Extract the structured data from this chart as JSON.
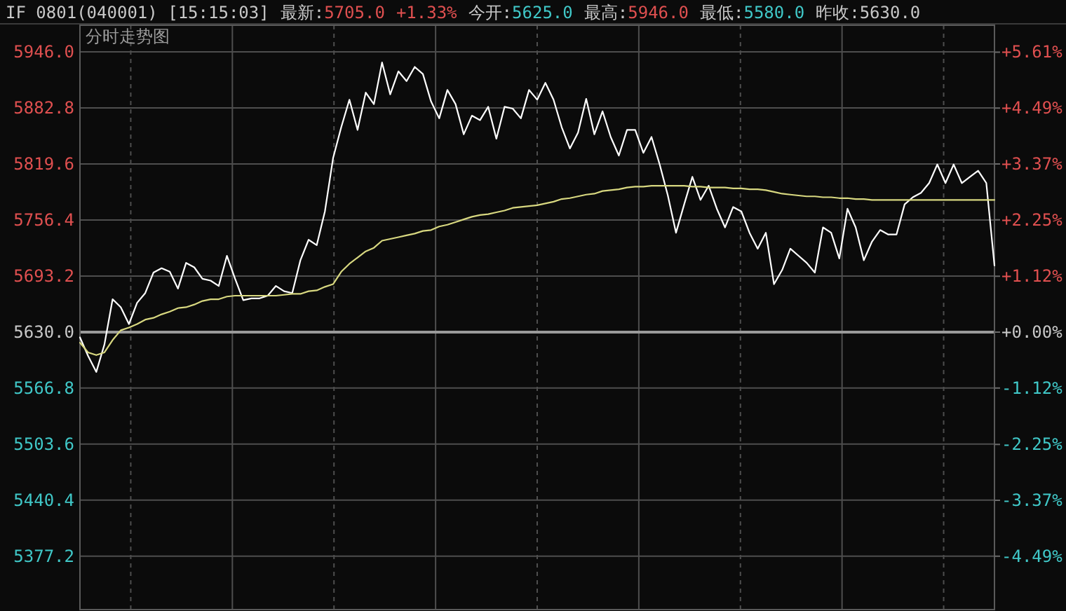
{
  "chart_data": {
    "type": "line",
    "title": "IF  0801(040001) [15:15:03]",
    "subtitle": "分时走势图",
    "annotations": [
      "最新:5705.0",
      "+1.33%",
      "今开:5625.0",
      "最高:5946.0",
      "最低:5580.0",
      "昨收:5630.0"
    ],
    "categories": [
      null,
      null,
      null,
      null,
      null,
      null,
      null,
      null,
      null,
      null,
      null,
      null,
      null,
      null,
      null,
      null,
      null,
      null,
      null,
      null,
      null,
      null,
      null,
      null,
      null,
      null,
      null,
      null,
      null,
      null,
      null,
      null,
      null,
      null,
      null,
      null,
      null,
      null,
      null,
      null,
      null,
      null,
      null,
      null,
      null,
      null,
      null,
      null,
      null,
      null,
      null,
      null,
      null,
      null,
      null,
      null,
      null,
      null,
      null,
      null,
      null,
      null,
      null,
      null,
      null,
      null,
      null,
      null,
      null,
      null,
      null,
      null,
      null,
      null,
      null,
      null,
      null,
      null,
      null,
      null,
      null,
      null,
      null,
      null,
      null,
      null,
      null,
      null,
      null,
      null,
      null,
      null,
      null,
      null,
      null,
      null,
      null,
      null,
      null,
      null,
      null,
      null,
      null,
      null,
      null,
      null,
      null,
      null,
      null,
      null,
      null,
      null,
      null
    ],
    "series": [
      {
        "color": "#ffffff",
        "values": [
          5624,
          5603,
          5585,
          5616,
          5667,
          5658,
          5639,
          5663,
          5674,
          5697,
          5702,
          5698,
          5679,
          5708,
          5703,
          5690,
          5688,
          5682,
          5716,
          5690,
          5666,
          5668,
          5668,
          5671,
          5682,
          5676,
          5674,
          5711,
          5734,
          5728,
          5766,
          5826,
          5861,
          5892,
          5858,
          5900,
          5887,
          5934,
          5898,
          5924,
          5913,
          5929,
          5921,
          5890,
          5871,
          5903,
          5887,
          5853,
          5874,
          5869,
          5884,
          5848,
          5884,
          5882,
          5871,
          5903,
          5892,
          5911,
          5892,
          5861,
          5837,
          5855,
          5893,
          5853,
          5879,
          5850,
          5829,
          5858,
          5858,
          5832,
          5850,
          5819,
          5784,
          5742,
          5774,
          5805,
          5779,
          5795,
          5769,
          5748,
          5771,
          5766,
          5742,
          5724,
          5742,
          5684,
          5700,
          5724,
          5716,
          5708,
          5697,
          5748,
          5742,
          5713,
          5769,
          5748,
          5711,
          5732,
          5745,
          5740,
          5740,
          5774,
          5782,
          5787,
          5798,
          5819,
          5798,
          5819,
          5798,
          5805,
          5812,
          5798,
          5705
        ]
      },
      {
        "color": "#d8d880",
        "values": [
          5618,
          5607,
          5604,
          5607,
          5621,
          5632,
          5635,
          5639,
          5644,
          5646,
          5650,
          5653,
          5657,
          5658,
          5661,
          5665,
          5667,
          5667,
          5670,
          5671,
          5671,
          5671,
          5671,
          5671,
          5671,
          5672,
          5673,
          5673,
          5676,
          5677,
          5681,
          5684,
          5698,
          5707,
          5714,
          5721,
          5725,
          5733,
          5735,
          5737,
          5739,
          5741,
          5744,
          5745,
          5749,
          5751,
          5754,
          5757,
          5760,
          5762,
          5763,
          5765,
          5767,
          5770,
          5771,
          5772,
          5773,
          5775,
          5777,
          5780,
          5781,
          5783,
          5785,
          5786,
          5789,
          5790,
          5791,
          5793,
          5794,
          5794,
          5795,
          5795,
          5795,
          5795,
          5795,
          5794,
          5794,
          5793,
          5793,
          5793,
          5792,
          5792,
          5791,
          5791,
          5790,
          5788,
          5786,
          5785,
          5784,
          5783,
          5783,
          5782,
          5782,
          5781,
          5781,
          5780,
          5780,
          5779,
          5779,
          5779,
          5779,
          5779,
          5779,
          5779,
          5779,
          5779,
          5779,
          5779,
          5779,
          5779,
          5779,
          5779,
          5779
        ]
      }
    ],
    "ylim": [
      5317,
      5976
    ],
    "yticks": [
      {
        "value": 5946,
        "label": "5946.0"
      },
      5882.8,
      5819.6,
      5756.4,
      5693.2,
      {
        "value": 5630,
        "label": "5630.0"
      },
      5566.8,
      5503.6,
      5440.4,
      5377.2
    ],
    "y2lim": [
      -5.56,
      6.15
    ],
    "y2ticks": [
      {
        "value": 5.61,
        "label": "+5.61%"
      },
      {
        "value": 4.49,
        "label": "+4.49%"
      },
      {
        "value": 3.37,
        "label": "+3.37%"
      },
      {
        "value": 2.25,
        "label": "+2.25%"
      },
      {
        "value": 1.12,
        "label": "+1.12%"
      },
      {
        "value": 0,
        "label": "+0.00%"
      },
      {
        "value": -1.12,
        "label": "-1.12%"
      },
      {
        "value": -2.25,
        "label": "-2.25%"
      },
      {
        "value": -3.37,
        "label": "-3.37%"
      },
      {
        "value": -4.49,
        "label": "-4.49%"
      }
    ],
    "ref_lines": [
      {
        "axis": "y",
        "value": 5630
      }
    ],
    "grid": true,
    "marker": "none",
    "line_style": "solid"
  }
}
